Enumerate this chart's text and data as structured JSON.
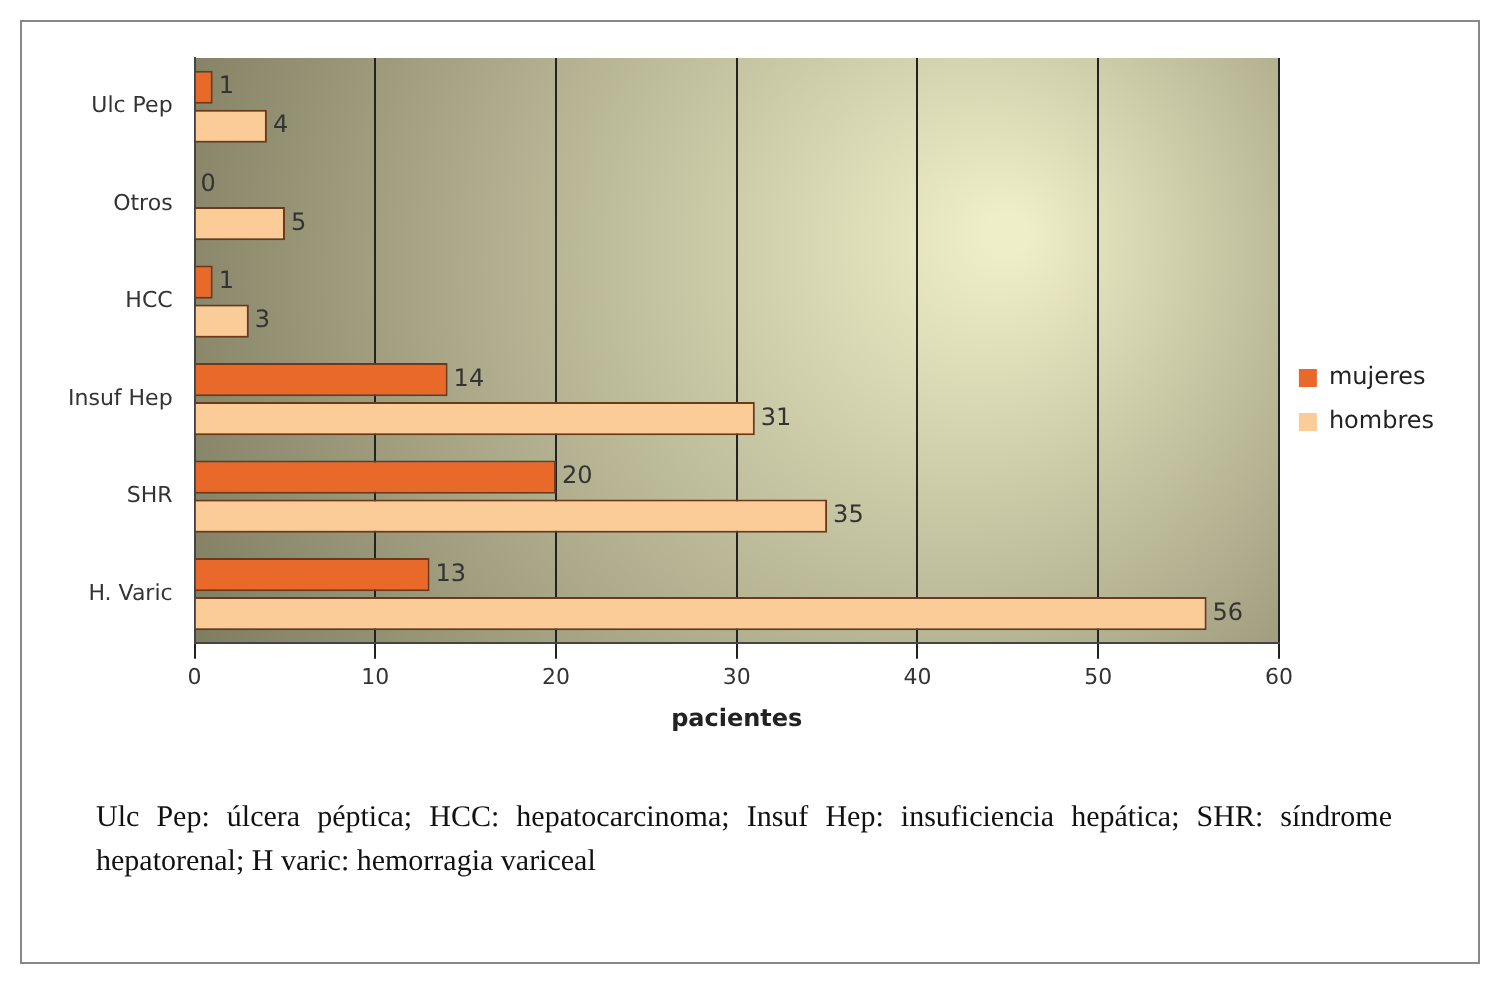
{
  "chart_data": {
    "type": "bar",
    "orientation": "horizontal",
    "categories": [
      "Ulc Pep",
      "Otros",
      "HCC",
      "Insuf Hep",
      "SHR",
      "H. Varic"
    ],
    "series": [
      {
        "name": "mujeres",
        "color": "#e8692a",
        "values": [
          1,
          0,
          1,
          14,
          20,
          13
        ]
      },
      {
        "name": "hombres",
        "color": "#fbcb98",
        "values": [
          4,
          5,
          3,
          31,
          35,
          56
        ]
      }
    ],
    "xlabel": "pacientes",
    "xlim": [
      0,
      60
    ],
    "xticks": [
      0,
      10,
      20,
      30,
      40,
      50,
      60
    ],
    "grid": "x",
    "legend": "right",
    "data_labels": true,
    "annotations": [
      "Ulc Pep: úlcera péptica; HCC: hepatocarcinoma; Insuf Hep: insuficiencia hepática; SHR: síndrome hepatorenal; H varic: hemorragia variceal"
    ]
  }
}
